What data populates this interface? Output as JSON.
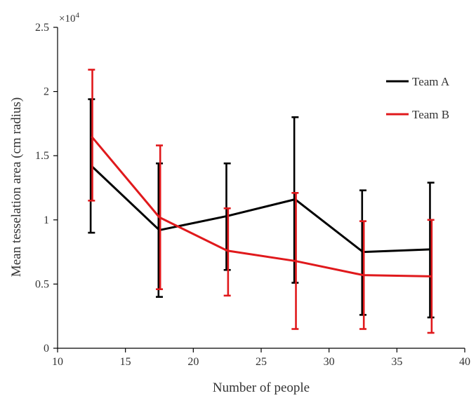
{
  "chart_data": {
    "type": "line",
    "title": "",
    "xlabel": "Number of people",
    "ylabel": "Mean tesselation area (cm  radius)",
    "y_multiplier_label": "×10",
    "y_multiplier_exponent": "4",
    "xlim": [
      10,
      40
    ],
    "ylim": [
      0,
      25000
    ],
    "xticks": [
      10,
      15,
      20,
      25,
      30,
      35,
      40
    ],
    "xtick_labels": [
      "10",
      "15",
      "20",
      "25",
      "30",
      "35",
      "40"
    ],
    "yticks": [
      0,
      5000,
      10000,
      15000,
      20000,
      25000
    ],
    "ytick_labels": [
      "0",
      "0.5",
      "1",
      "1.5",
      "2",
      "2.5"
    ],
    "grid": false,
    "legend_position": "top-right",
    "x": [
      12.5,
      17.5,
      22.5,
      27.5,
      32.5,
      37.5
    ],
    "series": [
      {
        "name": "Team A",
        "color": "#000000",
        "values": [
          14200,
          9200,
          10300,
          11600,
          7500,
          7700
        ],
        "error_low": [
          9000,
          4000,
          6100,
          5100,
          2600,
          2400
        ],
        "error_high": [
          19400,
          14400,
          14400,
          18000,
          12300,
          12900
        ]
      },
      {
        "name": "Team B",
        "color": "#e0191c",
        "values": [
          16500,
          10200,
          7600,
          6800,
          5700,
          5600
        ],
        "error_low": [
          11500,
          4600,
          4100,
          1500,
          1500,
          1200
        ],
        "error_high": [
          21700,
          15800,
          10900,
          12100,
          9900,
          10000
        ]
      }
    ]
  }
}
